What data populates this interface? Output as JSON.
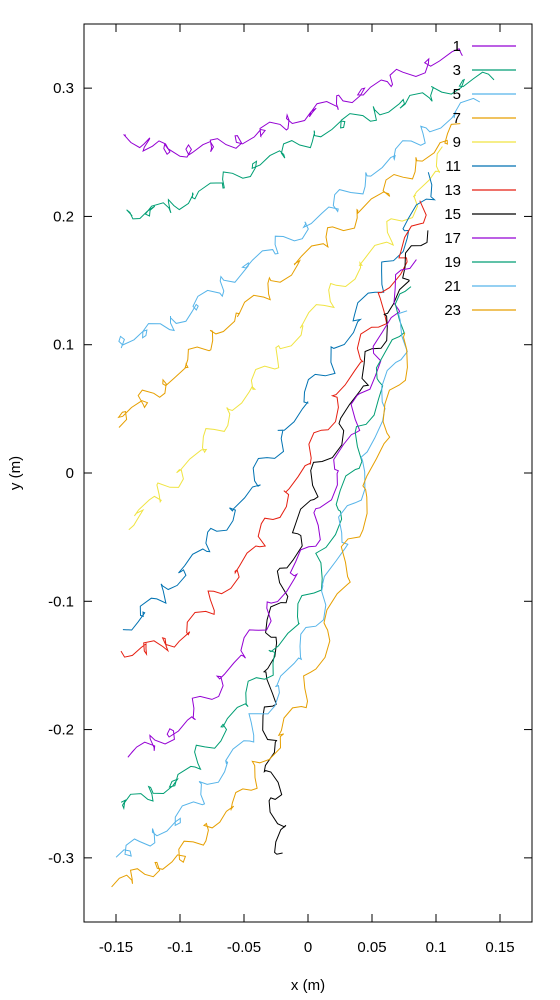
{
  "chart_data": {
    "type": "line",
    "title": "",
    "xlabel": "x (m)",
    "ylabel": "y (m)",
    "xlim": [
      -0.175,
      0.175
    ],
    "ylim": [
      -0.35,
      0.35
    ],
    "xticks": [
      "-0.15",
      "-0.1",
      "-0.05",
      "0",
      "0.05",
      "0.1",
      "0.15"
    ],
    "xtick_values": [
      -0.15,
      -0.1,
      -0.05,
      0,
      0.05,
      0.1,
      0.15
    ],
    "yticks": [
      "-0.3",
      "-0.2",
      "-0.1",
      "0",
      "0.1",
      "0.2",
      "0.3"
    ],
    "ytick_values": [
      -0.3,
      -0.2,
      -0.1,
      0,
      0.1,
      0.2,
      0.3
    ],
    "grid": false,
    "legend_position": "top-right",
    "palette": [
      "#9400d3",
      "#009e73",
      "#56b4e9",
      "#e69f00",
      "#f0e442",
      "#0072b2",
      "#e51e10",
      "#000000"
    ],
    "series": [
      {
        "name": "1",
        "color": "#9400d3",
        "x": [
          0.12,
          0.05,
          0.0,
          -0.05,
          -0.1,
          -0.14
        ],
        "y": [
          0.33,
          0.3,
          0.28,
          0.26,
          0.25,
          0.26
        ]
      },
      {
        "name": "3",
        "color": "#009e73",
        "x": [
          0.14,
          0.08,
          0.02,
          -0.04,
          -0.1,
          -0.14
        ],
        "y": [
          0.31,
          0.29,
          0.27,
          0.24,
          0.21,
          0.2
        ]
      },
      {
        "name": "5",
        "color": "#56b4e9",
        "x": [
          0.13,
          0.07,
          0.01,
          -0.05,
          -0.1,
          -0.15
        ],
        "y": [
          0.29,
          0.25,
          0.2,
          0.16,
          0.12,
          0.1
        ]
      },
      {
        "name": "7",
        "color": "#e69f00",
        "x": [
          0.12,
          0.06,
          0.0,
          -0.06,
          -0.11,
          -0.15
        ],
        "y": [
          0.27,
          0.22,
          0.17,
          0.12,
          0.07,
          0.04
        ]
      },
      {
        "name": "9",
        "color": "#f0e442",
        "x": [
          0.11,
          0.06,
          0.0,
          -0.05,
          -0.1,
          -0.14
        ],
        "y": [
          0.25,
          0.18,
          0.12,
          0.06,
          0.0,
          -0.04
        ]
      },
      {
        "name": "11",
        "color": "#0072b2",
        "x": [
          0.1,
          0.05,
          0.0,
          -0.05,
          -0.1,
          -0.14
        ],
        "y": [
          0.23,
          0.14,
          0.06,
          -0.02,
          -0.08,
          -0.12
        ]
      },
      {
        "name": "13",
        "color": "#e51e10",
        "x": [
          0.09,
          0.05,
          0.0,
          -0.05,
          -0.1,
          -0.14
        ],
        "y": [
          0.21,
          0.11,
          0.01,
          -0.07,
          -0.13,
          -0.14
        ]
      },
      {
        "name": "15",
        "color": "#000000",
        "x": [
          0.09,
          0.05,
          0.0,
          -0.03,
          -0.03,
          -0.02
        ],
        "y": [
          0.19,
          0.09,
          -0.02,
          -0.12,
          -0.22,
          -0.3
        ]
      },
      {
        "name": "17",
        "color": "#9400d3",
        "x": [
          0.08,
          0.04,
          0.0,
          -0.05,
          -0.1,
          -0.14
        ],
        "y": [
          0.17,
          0.05,
          -0.06,
          -0.14,
          -0.2,
          -0.22
        ]
      },
      {
        "name": "19",
        "color": "#009e73",
        "x": [
          0.08,
          0.04,
          0.0,
          -0.05,
          -0.1,
          -0.15
        ],
        "y": [
          0.15,
          0.02,
          -0.1,
          -0.18,
          -0.24,
          -0.26
        ]
      },
      {
        "name": "21",
        "color": "#56b4e9",
        "x": [
          0.08,
          0.04,
          0.0,
          -0.05,
          -0.1,
          -0.15
        ],
        "y": [
          0.13,
          -0.01,
          -0.13,
          -0.21,
          -0.27,
          -0.3
        ]
      },
      {
        "name": "23",
        "color": "#e69f00",
        "x": [
          0.08,
          0.04,
          0.0,
          -0.05,
          -0.1,
          -0.15
        ],
        "y": [
          0.11,
          -0.04,
          -0.17,
          -0.25,
          -0.3,
          -0.32
        ]
      }
    ]
  }
}
